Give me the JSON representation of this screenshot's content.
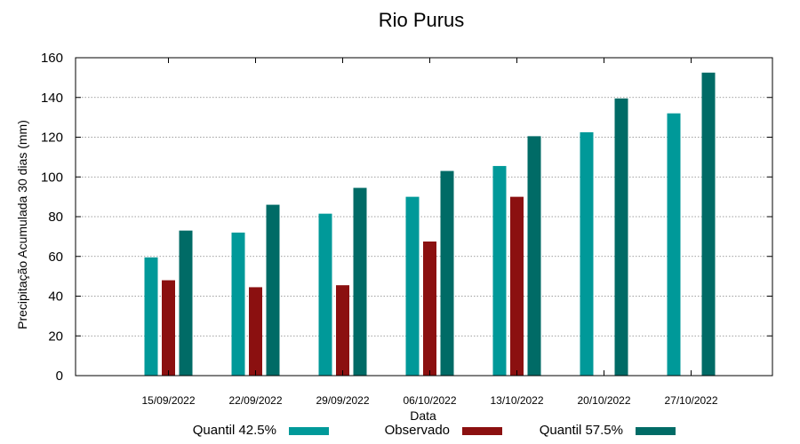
{
  "chart_data": {
    "type": "bar",
    "title": "Rio Purus",
    "xlabel": "Data",
    "ylabel": "Precipitação Acumulada 30 dias (mm)",
    "ylim": [
      0,
      160
    ],
    "yticks": [
      0,
      20,
      40,
      60,
      80,
      100,
      120,
      140,
      160
    ],
    "grid": true,
    "legend_position": "bottom",
    "categories": [
      "15/09/2022",
      "22/09/2022",
      "29/09/2022",
      "06/10/2022",
      "13/10/2022",
      "20/10/2022",
      "27/10/2022"
    ],
    "series": [
      {
        "name": "Quantil 42.5%",
        "color": "#009999",
        "values": [
          59.5,
          72,
          81.5,
          90,
          105.5,
          122.5,
          132
        ]
      },
      {
        "name": "Observado",
        "color": "#8b1010",
        "values": [
          48,
          44.5,
          45.5,
          67.5,
          90,
          null,
          null
        ]
      },
      {
        "name": "Quantil 57.5%",
        "color": "#006b66",
        "values": [
          73,
          86,
          94.5,
          103,
          120.5,
          139.5,
          152.5
        ]
      }
    ]
  }
}
